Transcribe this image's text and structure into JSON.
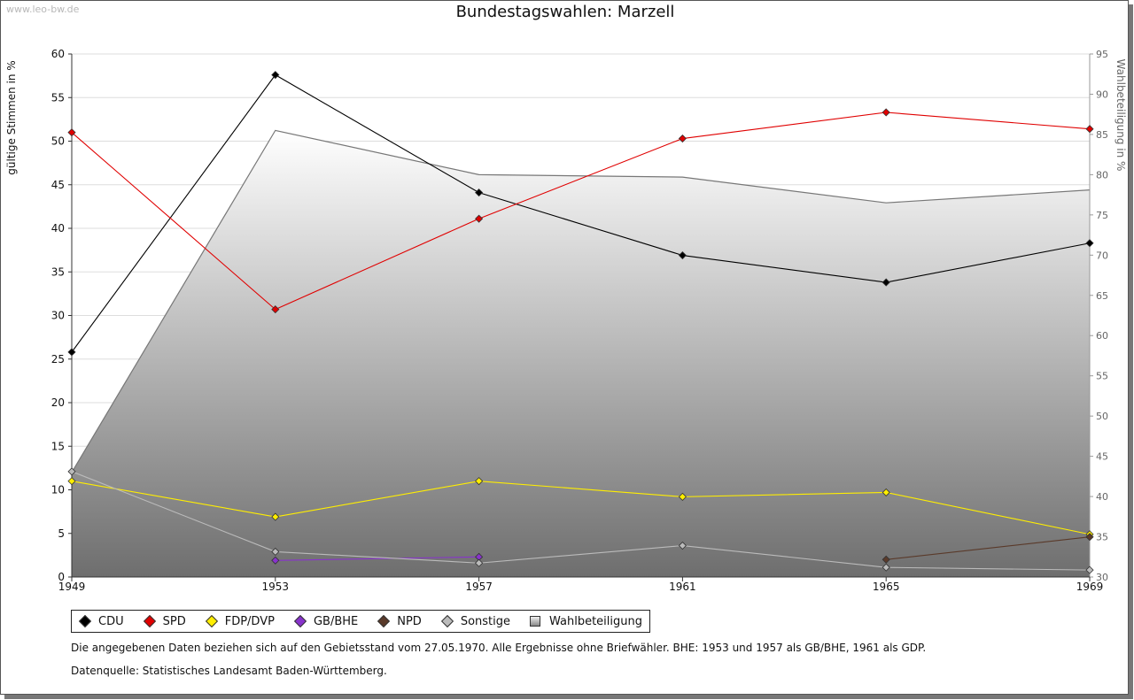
{
  "watermark": "www.leo-bw.de",
  "chart_data": {
    "type": "line",
    "title": "Bundestagswahlen: Marzell",
    "x": [
      "1949",
      "1953",
      "1957",
      "1961",
      "1965",
      "1969"
    ],
    "ylabel": "gültige Stimmen in %",
    "ylabel_right": "Wahlbeteiligung in %",
    "ylim": [
      0,
      60
    ],
    "ylim_right": [
      30,
      95
    ],
    "yticks": [
      "0",
      "5",
      "10",
      "15",
      "20",
      "25",
      "30",
      "35",
      "40",
      "45",
      "50",
      "55",
      "60"
    ],
    "yticks_right": [
      "30",
      "35",
      "40",
      "45",
      "50",
      "55",
      "60",
      "65",
      "70",
      "75",
      "80",
      "85",
      "90",
      "95"
    ],
    "series": [
      {
        "name": "CDU",
        "color": "#000000",
        "values": [
          25.8,
          57.6,
          44.1,
          36.9,
          33.8,
          38.3
        ]
      },
      {
        "name": "SPD",
        "color": "#e00000",
        "values": [
          51.0,
          30.7,
          41.1,
          50.3,
          53.3,
          51.4
        ]
      },
      {
        "name": "FDP/DVP",
        "color": "#ffee00",
        "values": [
          11.0,
          6.9,
          11.0,
          9.2,
          9.7,
          4.9
        ]
      },
      {
        "name": "GB/BHE",
        "color": "#8833cc",
        "values": [
          null,
          1.9,
          2.3,
          null,
          null,
          null
        ]
      },
      {
        "name": "NPD",
        "color": "#5a3a2a",
        "values": [
          null,
          null,
          null,
          null,
          2.0,
          4.6
        ]
      },
      {
        "name": "Sonstige",
        "color": "#bbbbbb",
        "values": [
          12.1,
          2.9,
          1.6,
          3.6,
          1.1,
          0.8
        ]
      }
    ],
    "area": {
      "name": "Wahlbeteiligung",
      "axis": "right",
      "values": [
        43.0,
        85.5,
        80.0,
        79.7,
        76.5,
        78.1
      ]
    }
  },
  "notes": {
    "line1": "Die angegebenen Daten beziehen sich auf den Gebietsstand vom 27.05.1970. Alle Ergebnisse ohne Briefwähler. BHE: 1953 und 1957 als GB/BHE, 1961 als GDP.",
    "line2": "Datenquelle: Statistisches Landesamt Baden-Württemberg."
  }
}
